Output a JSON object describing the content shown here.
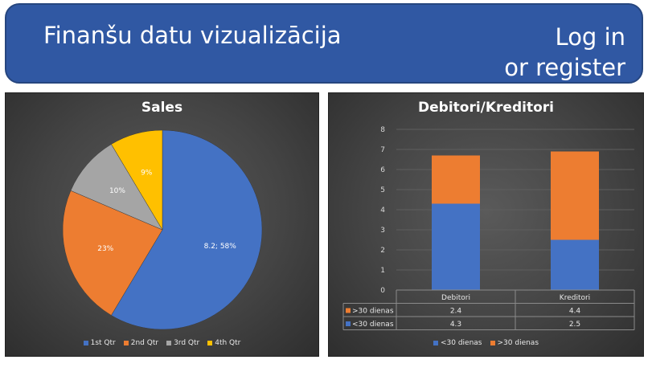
{
  "header": {
    "title": "Finanšu datu vizualizācija",
    "login_line1": "Log in",
    "login_line2": "or register"
  },
  "colors": {
    "header_bg": "#3058a3",
    "blue": "#4472c4",
    "orange": "#ed7d31",
    "gray": "#a5a5a5",
    "yellow": "#ffc000"
  },
  "chart_data": [
    {
      "type": "pie",
      "title": "Sales",
      "categories": [
        "1st Qtr",
        "2nd Qtr",
        "3rd Qtr",
        "4th Qtr"
      ],
      "values": [
        8.2,
        3.2,
        1.4,
        1.2
      ],
      "data_labels": [
        "8.2; 58%",
        "23%",
        "10%",
        "9%"
      ],
      "colors": [
        "#4472c4",
        "#ed7d31",
        "#a5a5a5",
        "#ffc000"
      ],
      "legend_position": "bottom"
    },
    {
      "type": "bar",
      "stacked": true,
      "title": "Debitori/Kreditori",
      "categories": [
        "Debitori",
        "Kreditori"
      ],
      "series": [
        {
          "name": "<30 dienas",
          "values": [
            4.3,
            2.5
          ],
          "color": "#4472c4"
        },
        {
          "name": ">30 dienas",
          "values": [
            2.4,
            4.4
          ],
          "color": "#ed7d31"
        }
      ],
      "ylim": [
        0,
        8
      ],
      "yticks": [
        "0",
        "1",
        "2",
        "3",
        "4",
        "5",
        "6",
        "7",
        "8"
      ],
      "data_table": true,
      "legend_position": "bottom"
    }
  ]
}
